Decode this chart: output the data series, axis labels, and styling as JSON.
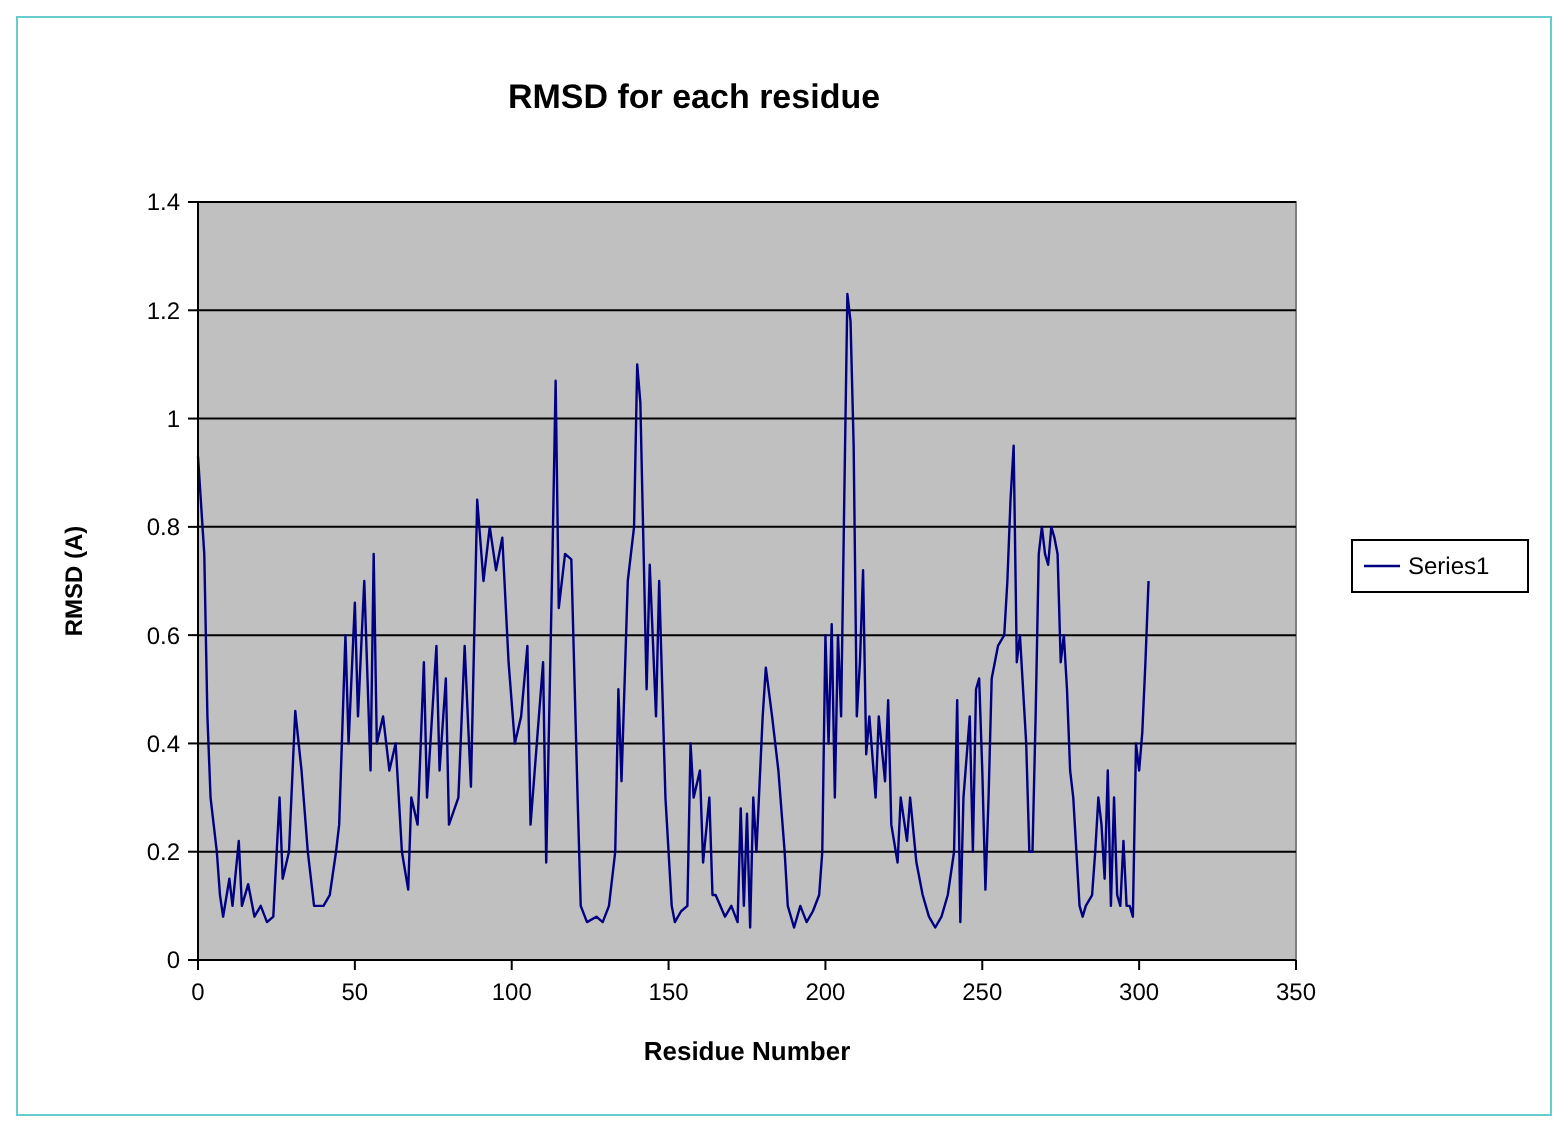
{
  "chart_data": {
    "type": "line",
    "title": "RMSD for each residue",
    "xlabel": "Residue Number",
    "ylabel": "RMSD (A)",
    "xlim": [
      0,
      350
    ],
    "xticks": [
      0,
      50,
      100,
      150,
      200,
      250,
      300,
      350
    ],
    "ylim": [
      0,
      1.4
    ],
    "yticks": [
      0,
      0.2,
      0.4,
      0.6,
      0.8,
      1,
      1.2,
      1.4
    ],
    "grid": "y",
    "legend": "right",
    "marker": "none",
    "line_style": "solid",
    "series": [
      {
        "name": "Series1",
        "color": "#000080",
        "x": [
          0,
          2,
          3,
          4,
          6,
          7,
          8,
          10,
          11,
          13,
          14,
          16,
          18,
          20,
          22,
          24,
          26,
          27,
          29,
          31,
          33,
          35,
          37,
          40,
          42,
          44,
          45,
          47,
          48,
          50,
          51,
          53,
          55,
          56,
          57,
          59,
          61,
          63,
          65,
          67,
          68,
          70,
          72,
          73,
          76,
          77,
          79,
          80,
          83,
          85,
          87,
          89,
          91,
          93,
          95,
          97,
          99,
          101,
          103,
          105,
          106,
          108,
          110,
          111,
          113,
          114,
          115,
          117,
          119,
          121,
          122,
          124,
          127,
          129,
          131,
          133,
          134,
          135,
          137,
          139,
          140,
          141,
          143,
          144,
          146,
          147,
          149,
          151,
          152,
          154,
          156,
          157,
          158,
          160,
          161,
          163,
          164,
          165,
          168,
          170,
          172,
          173,
          174,
          175,
          176,
          177,
          178,
          180,
          181,
          183,
          185,
          187,
          188,
          190,
          192,
          194,
          196,
          198,
          199,
          200,
          201,
          202,
          203,
          204,
          205,
          206,
          207,
          208,
          209,
          210,
          211,
          212,
          213,
          214,
          216,
          217,
          219,
          220,
          221,
          223,
          224,
          226,
          227,
          229,
          231,
          233,
          235,
          237,
          239,
          241,
          242,
          243,
          244,
          246,
          247,
          248,
          249,
          250,
          251,
          252,
          253,
          255,
          257,
          258,
          259,
          260,
          261,
          262,
          264,
          265,
          266,
          267,
          268,
          269,
          270,
          271,
          272,
          273,
          274,
          275,
          276,
          277,
          278,
          279,
          280,
          281,
          282,
          283,
          285,
          286,
          287,
          288,
          289,
          290,
          291,
          292,
          293,
          294,
          295,
          296,
          297,
          298,
          299,
          300,
          301,
          302,
          303
        ],
        "values": [
          0.93,
          0.75,
          0.45,
          0.3,
          0.2,
          0.12,
          0.08,
          0.15,
          0.1,
          0.22,
          0.1,
          0.14,
          0.08,
          0.1,
          0.07,
          0.08,
          0.3,
          0.15,
          0.2,
          0.46,
          0.35,
          0.2,
          0.1,
          0.1,
          0.12,
          0.2,
          0.25,
          0.6,
          0.4,
          0.66,
          0.45,
          0.7,
          0.35,
          0.75,
          0.4,
          0.45,
          0.35,
          0.4,
          0.2,
          0.13,
          0.3,
          0.25,
          0.55,
          0.3,
          0.58,
          0.35,
          0.52,
          0.25,
          0.3,
          0.58,
          0.32,
          0.85,
          0.7,
          0.8,
          0.72,
          0.78,
          0.55,
          0.4,
          0.45,
          0.58,
          0.25,
          0.4,
          0.55,
          0.18,
          0.75,
          1.07,
          0.65,
          0.75,
          0.74,
          0.3,
          0.1,
          0.07,
          0.08,
          0.07,
          0.1,
          0.2,
          0.5,
          0.33,
          0.7,
          0.8,
          1.1,
          1.03,
          0.5,
          0.73,
          0.45,
          0.7,
          0.3,
          0.1,
          0.07,
          0.09,
          0.1,
          0.4,
          0.3,
          0.35,
          0.18,
          0.3,
          0.12,
          0.12,
          0.08,
          0.1,
          0.07,
          0.28,
          0.1,
          0.27,
          0.06,
          0.3,
          0.2,
          0.45,
          0.54,
          0.45,
          0.35,
          0.2,
          0.1,
          0.06,
          0.1,
          0.07,
          0.09,
          0.12,
          0.2,
          0.6,
          0.4,
          0.62,
          0.3,
          0.6,
          0.45,
          0.85,
          1.23,
          1.18,
          0.95,
          0.45,
          0.55,
          0.72,
          0.38,
          0.45,
          0.3,
          0.45,
          0.33,
          0.48,
          0.25,
          0.18,
          0.3,
          0.22,
          0.3,
          0.18,
          0.12,
          0.08,
          0.06,
          0.08,
          0.12,
          0.2,
          0.48,
          0.07,
          0.3,
          0.45,
          0.2,
          0.5,
          0.52,
          0.35,
          0.13,
          0.3,
          0.52,
          0.58,
          0.6,
          0.7,
          0.85,
          0.95,
          0.55,
          0.6,
          0.4,
          0.2,
          0.2,
          0.45,
          0.75,
          0.8,
          0.75,
          0.73,
          0.8,
          0.78,
          0.75,
          0.55,
          0.6,
          0.5,
          0.35,
          0.3,
          0.2,
          0.1,
          0.08,
          0.1,
          0.12,
          0.2,
          0.3,
          0.25,
          0.15,
          0.35,
          0.1,
          0.3,
          0.12,
          0.1,
          0.22,
          0.1,
          0.1,
          0.08,
          0.4,
          0.35,
          0.42,
          0.55,
          0.7
        ]
      }
    ]
  }
}
